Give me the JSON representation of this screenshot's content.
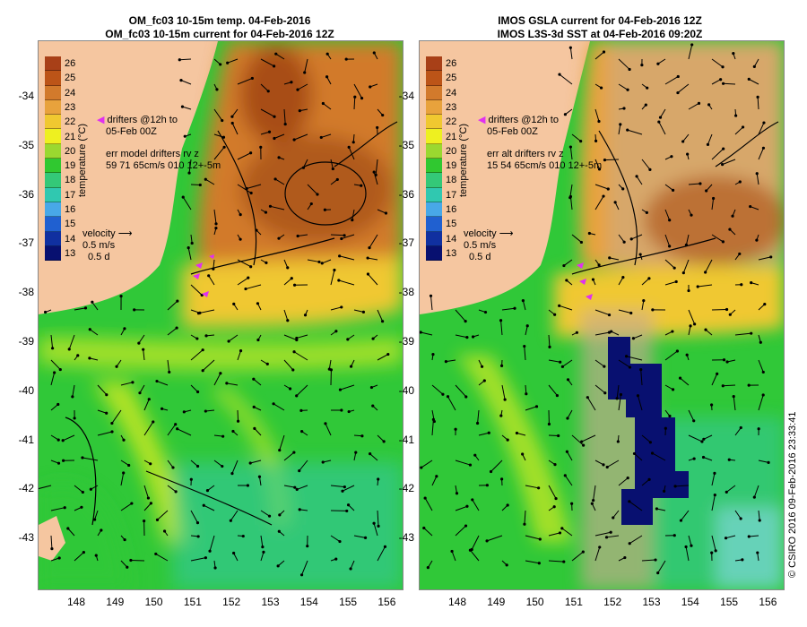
{
  "colors": {
    "land": "#f5c6a0",
    "hot": "#a84e12",
    "warm": "#e89a3c",
    "yellowish": "#eef020",
    "green": "#28c830",
    "teal": "#34c8a0",
    "cyan": "#8ad8e8",
    "navy": "#081070",
    "grey": "#c9ab92",
    "magenta": "#e030f0"
  },
  "left_panel": {
    "title_line1": "OM_fc03 10-15m temp. 04-Feb-2016",
    "title_line2": "OM_fc03 10-15m current for 04-Feb-2016 12Z",
    "drifters_line1": "drifters @12h to",
    "drifters_line2": "05-Feb 00Z",
    "err_line1": "err model drifters rv z",
    "err_line2": "59 71 65cm/s 010 12+-5m",
    "velocity_label": "velocity",
    "velocity_speed": "0.5 m/s",
    "velocity_time": "0.5 d",
    "colorbar_title": "temperature (°C)"
  },
  "right_panel": {
    "title_line1": "IMOS GSLA current for 04-Feb-2016 12Z",
    "title_line2": "IMOS L3S-3d SST at 04-Feb-2016 09:20Z",
    "drifters_line1": "drifters @12h to",
    "drifters_line2": "05-Feb 00Z",
    "err_line1": "err alt drifters rv z",
    "err_line2": "15 54 65cm/s 010 12+-5m",
    "velocity_label": "velocity",
    "velocity_speed": "0.5 m/s",
    "velocity_time": "0.5 d",
    "colorbar_title": "temperature (°C)"
  },
  "colorbar": {
    "labels": [
      "26",
      "25",
      "24",
      "23",
      "22",
      "21",
      "20",
      "19",
      "18",
      "17",
      "16",
      "15",
      "14",
      "13"
    ],
    "colors": [
      "#a84018",
      "#bc5418",
      "#d27a2c",
      "#e8a23c",
      "#f0c830",
      "#eef020",
      "#9ad830",
      "#30c830",
      "#34c878",
      "#30c8b0",
      "#48a8e8",
      "#2060d0",
      "#1030a0",
      "#081070"
    ]
  },
  "y_axis_labels": [
    "-34",
    "-35",
    "-36",
    "-37",
    "-38",
    "-39",
    "-40",
    "-41",
    "-42",
    "-43"
  ],
  "x_axis_labels": [
    "148",
    "149",
    "150",
    "151",
    "152",
    "153",
    "154",
    "155",
    "156"
  ],
  "copyright": "© CSIRO 2016   09-Feb-2016 23:33:41"
}
